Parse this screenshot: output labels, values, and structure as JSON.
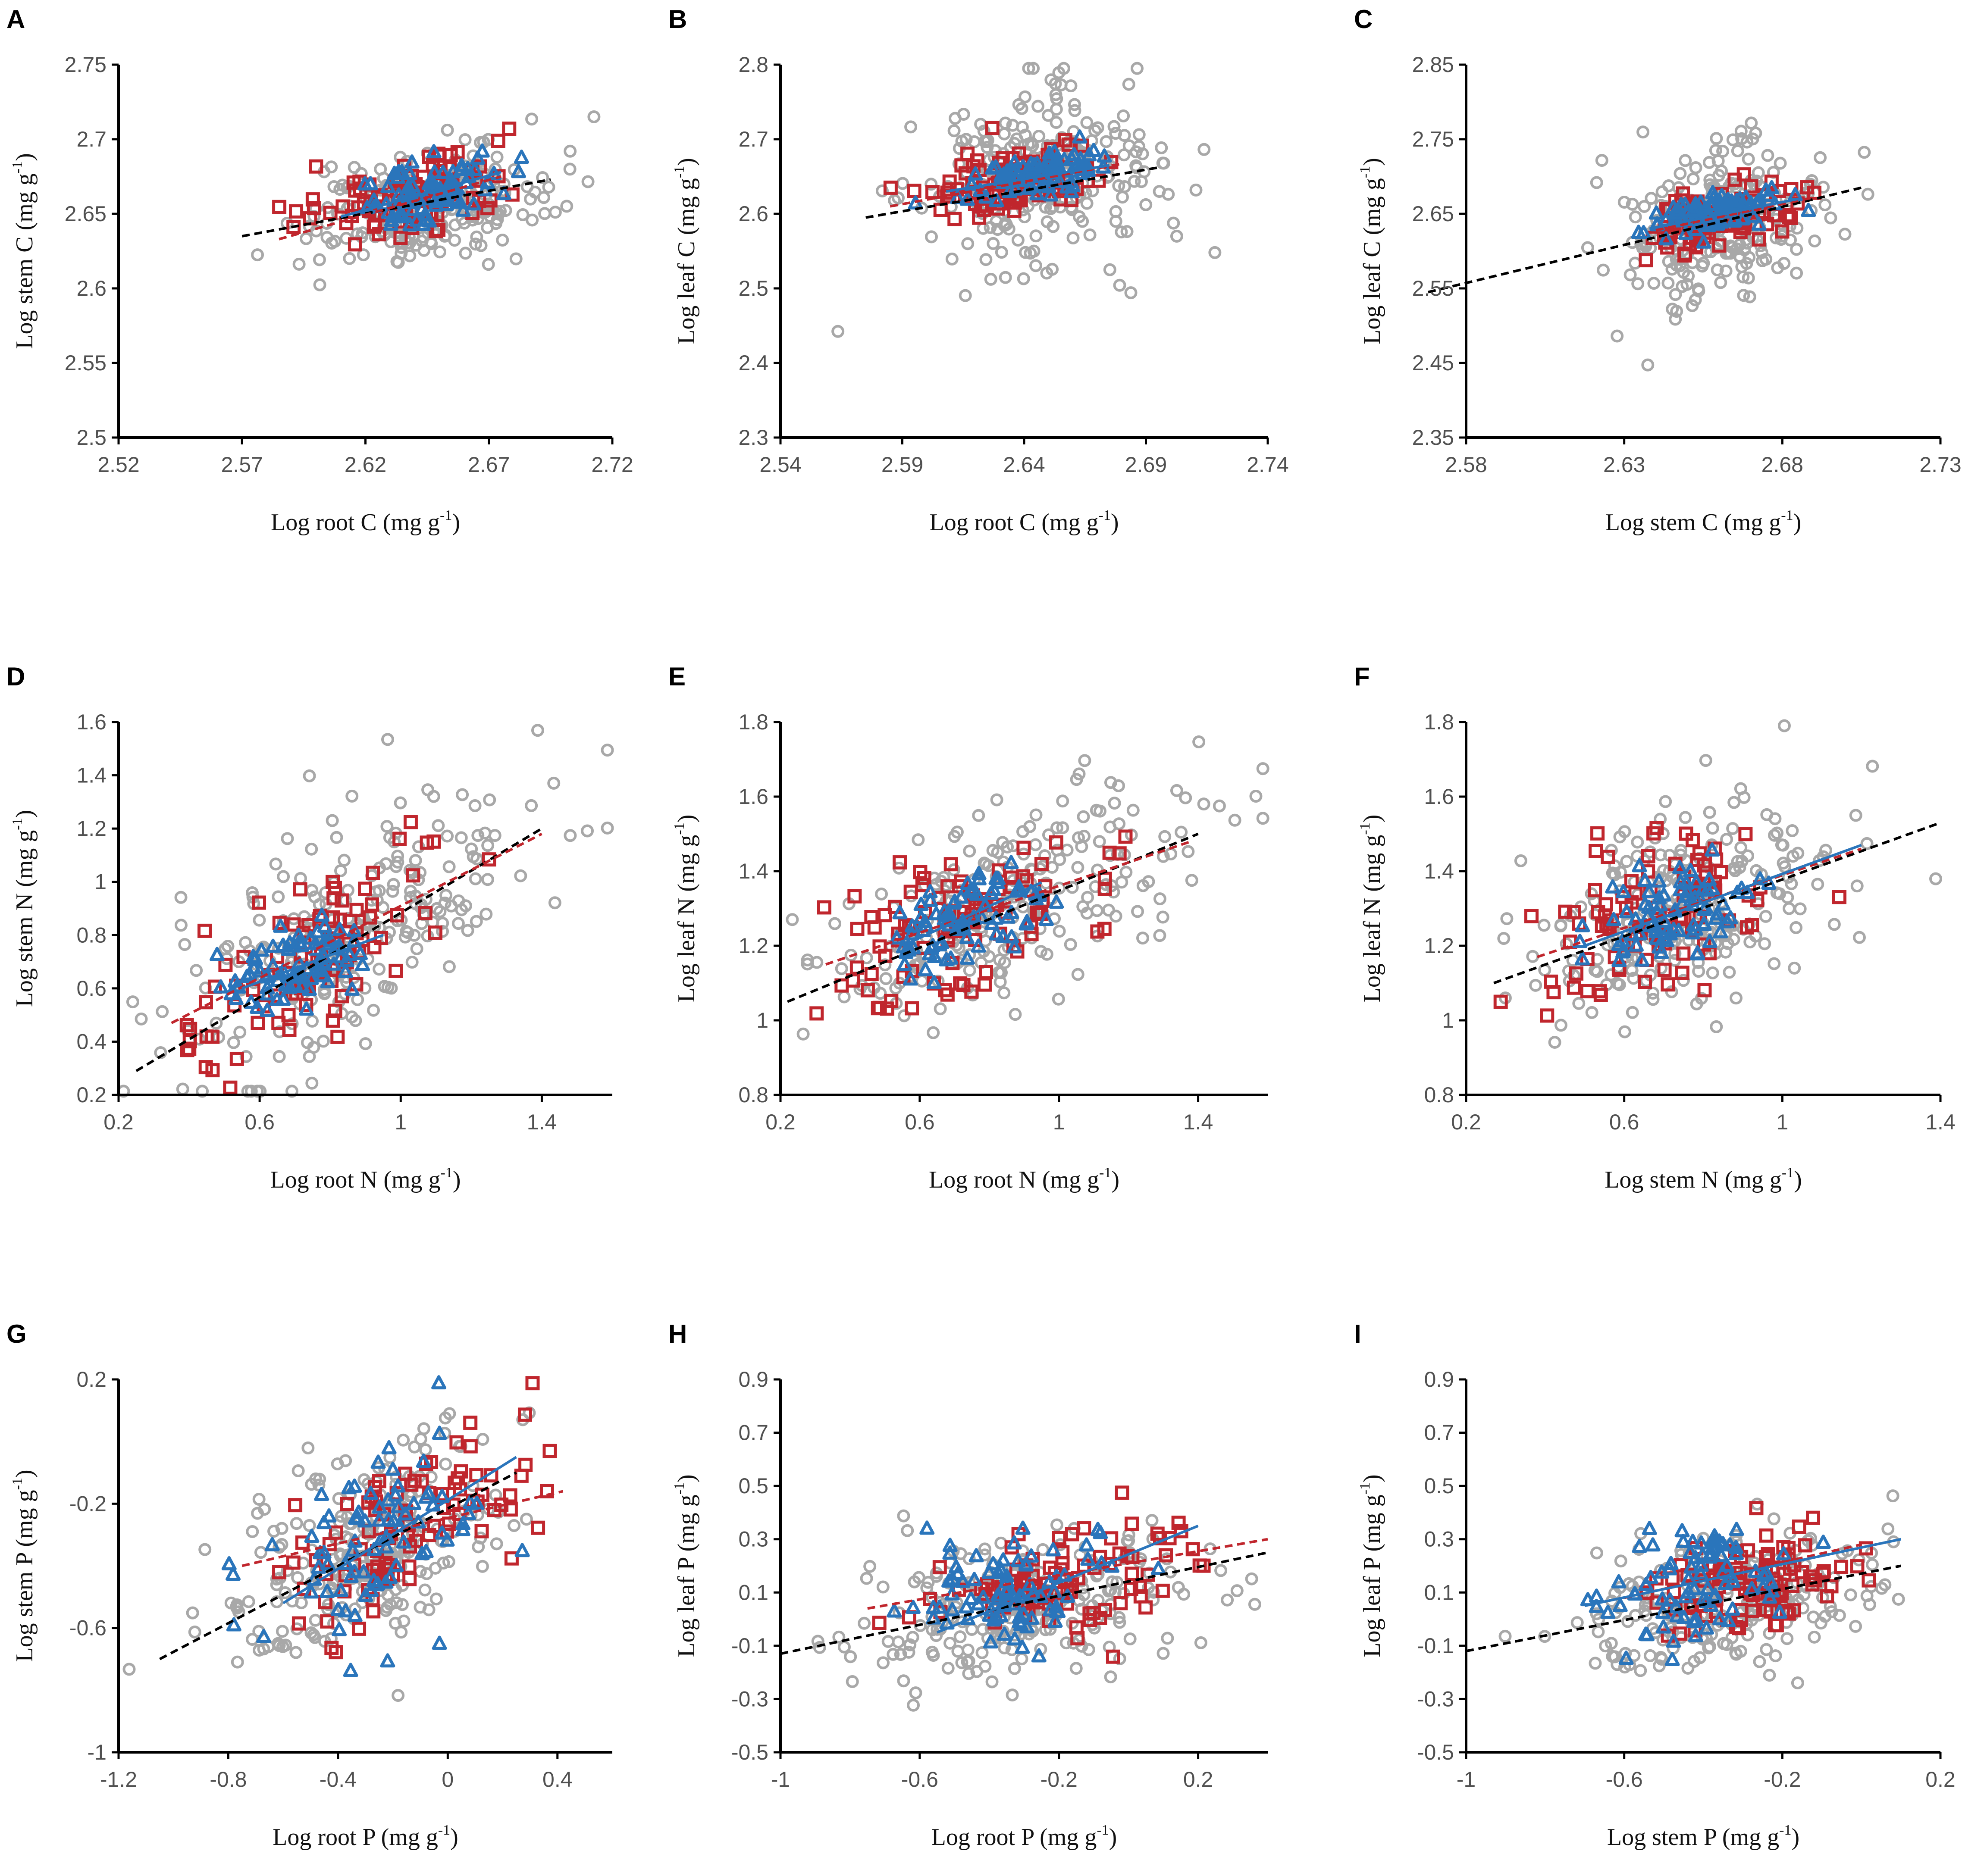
{
  "figure": {
    "colors": {
      "all": "#a8a8a8",
      "group_square": "#c0262d",
      "group_triangle": "#2a75bb",
      "fit_all": "#000000"
    },
    "markers": {
      "all": "circle-marker",
      "group_square": "square-marker",
      "group_triangle": "triangle-marker"
    }
  },
  "chart_data": [
    {
      "id": "A",
      "type": "scatter",
      "panel_label": "A",
      "xlabel": "Log root C (mg g",
      "ylabel": "Log stem C (mg g",
      "unit_sup": "-1",
      "unit_close": ")",
      "xlim": [
        2.52,
        2.72
      ],
      "ylim": [
        2.5,
        2.75
      ],
      "xticks": [
        "2.52",
        "2.57",
        "2.62",
        "2.67",
        "2.72"
      ],
      "yticks": [
        "2.5",
        "2.55",
        "2.6",
        "2.65",
        "2.7",
        "2.75"
      ],
      "center": {
        "gray": [
          2.645,
          2.655
        ],
        "red": [
          2.638,
          2.662
        ],
        "blue": [
          2.645,
          2.665
        ]
      },
      "spread": {
        "gray": [
          0.025,
          0.018
        ],
        "red": [
          0.02,
          0.015
        ],
        "blue": [
          0.015,
          0.01
        ]
      },
      "fits": [
        {
          "series": "all",
          "style": "dashed",
          "color": "#000000",
          "x": [
            2.57,
            2.695
          ],
          "y": [
            2.635,
            2.673
          ]
        },
        {
          "series": "group_square",
          "style": "dashed",
          "color": "#c0262d",
          "x": [
            2.585,
            2.675
          ],
          "y": [
            2.633,
            2.675
          ]
        },
        {
          "series": "group_triangle",
          "style": "solid",
          "color": "#2a75bb",
          "x": [
            2.61,
            2.675
          ],
          "y": [
            2.648,
            2.678
          ]
        }
      ]
    },
    {
      "id": "B",
      "type": "scatter",
      "panel_label": "B",
      "xlabel": "Log root C (mg g",
      "ylabel": "Log leaf C (mg g",
      "unit_sup": "-1",
      "unit_close": ")",
      "xlim": [
        2.54,
        2.74
      ],
      "ylim": [
        2.3,
        2.8
      ],
      "xticks": [
        "2.54",
        "2.59",
        "2.64",
        "2.69",
        "2.74"
      ],
      "yticks": [
        "2.3",
        "2.4",
        "2.5",
        "2.6",
        "2.7",
        "2.8"
      ],
      "center": {
        "gray": [
          2.645,
          2.64
        ],
        "red": [
          2.635,
          2.645
        ],
        "blue": [
          2.645,
          2.655
        ]
      },
      "spread": {
        "gray": [
          0.025,
          0.06
        ],
        "red": [
          0.018,
          0.02
        ],
        "blue": [
          0.015,
          0.015
        ]
      },
      "fits": [
        {
          "series": "all",
          "style": "dashed",
          "color": "#000000",
          "x": [
            2.575,
            2.695
          ],
          "y": [
            2.595,
            2.662
          ]
        },
        {
          "series": "group_square",
          "style": "dashed",
          "color": "#c0262d",
          "x": [
            2.585,
            2.68
          ],
          "y": [
            2.61,
            2.667
          ]
        },
        {
          "series": "group_triangle",
          "style": "solid",
          "color": "#2a75bb",
          "x": [
            2.608,
            2.675
          ],
          "y": [
            2.63,
            2.665
          ]
        }
      ]
    },
    {
      "id": "C",
      "type": "scatter",
      "panel_label": "C",
      "xlabel": "Log stem C (mg g",
      "ylabel": "Log leaf C (mg g",
      "unit_sup": "-1",
      "unit_close": ")",
      "xlim": [
        2.58,
        2.73
      ],
      "ylim": [
        2.35,
        2.85
      ],
      "xticks": [
        "2.58",
        "2.63",
        "2.68",
        "2.73"
      ],
      "yticks": [
        "2.35",
        "2.45",
        "2.55",
        "2.65",
        "2.75",
        "2.85"
      ],
      "center": {
        "gray": [
          2.66,
          2.64
        ],
        "red": [
          2.66,
          2.645
        ],
        "blue": [
          2.66,
          2.655
        ]
      },
      "spread": {
        "gray": [
          0.015,
          0.05
        ],
        "red": [
          0.012,
          0.02
        ],
        "blue": [
          0.01,
          0.012
        ]
      },
      "fits": [
        {
          "series": "all",
          "style": "dashed",
          "color": "#000000",
          "x": [
            2.568,
            2.705
          ],
          "y": [
            2.545,
            2.685
          ]
        },
        {
          "series": "group_square",
          "style": "dashed",
          "color": "#c0262d",
          "x": [
            2.64,
            2.69
          ],
          "y": [
            2.628,
            2.672
          ]
        },
        {
          "series": "group_triangle",
          "style": "solid",
          "color": "#2a75bb",
          "x": [
            2.638,
            2.685
          ],
          "y": [
            2.63,
            2.67
          ]
        }
      ]
    },
    {
      "id": "D",
      "type": "scatter",
      "panel_label": "D",
      "xlabel": "Log root N (mg g",
      "ylabel": "Log stem N (mg g",
      "unit_sup": "-1",
      "unit_close": ")",
      "xlim": [
        0.2,
        1.6
      ],
      "ylim": [
        0.2,
        1.6
      ],
      "xticks": [
        "0.2",
        "0.6",
        "1",
        "1.4"
      ],
      "yticks": [
        "0.2",
        "0.4",
        "0.6",
        "0.8",
        "1",
        "1.2",
        "1.4",
        "1.6"
      ],
      "center": {
        "gray": [
          0.85,
          0.82
        ],
        "red": [
          0.75,
          0.7
        ],
        "blue": [
          0.7,
          0.68
        ]
      },
      "spread": {
        "gray": [
          0.28,
          0.22
        ],
        "red": [
          0.2,
          0.15
        ],
        "blue": [
          0.1,
          0.08
        ]
      },
      "fits": [
        {
          "series": "all",
          "style": "dashed",
          "color": "#000000",
          "x": [
            0.25,
            1.4
          ],
          "y": [
            0.29,
            1.2
          ]
        },
        {
          "series": "group_square",
          "style": "dashed",
          "color": "#c0262d",
          "x": [
            0.35,
            1.4
          ],
          "y": [
            0.47,
            1.18
          ]
        },
        {
          "series": "group_triangle",
          "style": "solid",
          "color": "#2a75bb",
          "x": [
            0.55,
            0.95
          ],
          "y": [
            0.6,
            0.8
          ]
        }
      ]
    },
    {
      "id": "E",
      "type": "scatter",
      "panel_label": "E",
      "xlabel": "Log root N (mg g",
      "ylabel": "Log leaf N (mg g",
      "unit_sup": "-1",
      "unit_close": ")",
      "xlim": [
        0.2,
        1.6
      ],
      "ylim": [
        0.8,
        1.8
      ],
      "xticks": [
        "0.2",
        "0.6",
        "1",
        "1.4"
      ],
      "yticks": [
        "0.8",
        "1",
        "1.2",
        "1.4",
        "1.6",
        "1.8"
      ],
      "center": {
        "gray": [
          0.85,
          1.3
        ],
        "red": [
          0.75,
          1.28
        ],
        "blue": [
          0.72,
          1.27
        ]
      },
      "spread": {
        "gray": [
          0.26,
          0.13
        ],
        "red": [
          0.2,
          0.1
        ],
        "blue": [
          0.1,
          0.06
        ]
      },
      "fits": [
        {
          "series": "all",
          "style": "dashed",
          "color": "#000000",
          "x": [
            0.22,
            1.4
          ],
          "y": [
            1.05,
            1.5
          ]
        },
        {
          "series": "group_square",
          "style": "dashed",
          "color": "#c0262d",
          "x": [
            0.33,
            1.38
          ],
          "y": [
            1.15,
            1.48
          ]
        },
        {
          "series": "group_triangle",
          "style": "solid",
          "color": "#2a75bb",
          "x": [
            0.55,
            0.95
          ],
          "y": [
            1.2,
            1.37
          ]
        }
      ]
    },
    {
      "id": "F",
      "type": "scatter",
      "panel_label": "F",
      "xlabel": "Log stem N (mg g",
      "ylabel": "Log leaf N (mg g",
      "unit_sup": "-1",
      "unit_close": ")",
      "xlim": [
        0.2,
        1.4
      ],
      "ylim": [
        0.8,
        1.8
      ],
      "xticks": [
        "0.2",
        "0.6",
        "1",
        "1.4"
      ],
      "yticks": [
        "0.8",
        "1",
        "1.2",
        "1.4",
        "1.6",
        "1.8"
      ],
      "center": {
        "gray": [
          0.75,
          1.3
        ],
        "red": [
          0.68,
          1.28
        ],
        "blue": [
          0.7,
          1.28
        ]
      },
      "spread": {
        "gray": [
          0.2,
          0.13
        ],
        "red": [
          0.15,
          0.1
        ],
        "blue": [
          0.1,
          0.06
        ]
      },
      "fits": [
        {
          "series": "all",
          "style": "dashed",
          "color": "#000000",
          "x": [
            0.27,
            1.4
          ],
          "y": [
            1.1,
            1.53
          ]
        },
        {
          "series": "group_square",
          "style": "dashed",
          "color": "#c0262d",
          "x": [
            0.38,
            1.2
          ],
          "y": [
            1.17,
            1.46
          ]
        },
        {
          "series": "group_triangle",
          "style": "solid",
          "color": "#2a75bb",
          "x": [
            0.5,
            1.2
          ],
          "y": [
            1.2,
            1.47
          ]
        }
      ]
    },
    {
      "id": "G",
      "type": "scatter",
      "panel_label": "G",
      "xlabel": "Log root P (mg g",
      "ylabel": "Log stem P (mg g",
      "unit_sup": "-1",
      "unit_close": ")",
      "xlim": [
        -1.2,
        0.6
      ],
      "ylim": [
        -1,
        0.2
      ],
      "xticks": [
        "-1.2",
        "-0.8",
        "-0.4",
        "0",
        "0.4"
      ],
      "yticks": [
        "-1",
        "-0.6",
        "-0.2",
        "0.2"
      ],
      "center": {
        "gray": [
          -0.3,
          -0.35
        ],
        "red": [
          -0.15,
          -0.28
        ],
        "blue": [
          -0.3,
          -0.35
        ]
      },
      "spread": {
        "gray": [
          0.25,
          0.17
        ],
        "red": [
          0.22,
          0.13
        ],
        "blue": [
          0.18,
          0.13
        ]
      },
      "fits": [
        {
          "series": "all",
          "style": "dashed",
          "color": "#000000",
          "x": [
            -1.05,
            0.25
          ],
          "y": [
            -0.7,
            -0.1
          ]
        },
        {
          "series": "group_square",
          "style": "dashed",
          "color": "#c0262d",
          "x": [
            -0.75,
            0.42
          ],
          "y": [
            -0.4,
            -0.16
          ]
        },
        {
          "series": "group_triangle",
          "style": "solid",
          "color": "#2a75bb",
          "x": [
            -0.6,
            0.25
          ],
          "y": [
            -0.52,
            -0.05
          ]
        }
      ]
    },
    {
      "id": "H",
      "type": "scatter",
      "panel_label": "H",
      "xlabel": "Log root P (mg g",
      "ylabel": "Log leaf P (mg g",
      "unit_sup": "-1",
      "unit_close": ")",
      "xlim": [
        -1,
        0.4
      ],
      "ylim": [
        -0.5,
        0.9
      ],
      "xticks": [
        "-1",
        "-0.6",
        "-0.2",
        "0.2"
      ],
      "yticks": [
        "-0.5",
        "-0.3",
        "-0.1",
        "0.1",
        "0.3",
        "0.5",
        "0.7",
        "0.9"
      ],
      "center": {
        "gray": [
          -0.3,
          0.05
        ],
        "red": [
          -0.15,
          0.15
        ],
        "blue": [
          -0.35,
          0.1
        ]
      },
      "spread": {
        "gray": [
          0.22,
          0.13
        ],
        "red": [
          0.18,
          0.1
        ],
        "blue": [
          0.15,
          0.1
        ]
      },
      "fits": [
        {
          "series": "all",
          "style": "dashed",
          "color": "#000000",
          "x": [
            -1,
            0.4
          ],
          "y": [
            -0.13,
            0.25
          ]
        },
        {
          "series": "group_square",
          "style": "dashed",
          "color": "#c0262d",
          "x": [
            -0.75,
            0.4
          ],
          "y": [
            0.04,
            0.3
          ]
        },
        {
          "series": "group_triangle",
          "style": "solid",
          "color": "#2a75bb",
          "x": [
            -0.55,
            0.2
          ],
          "y": [
            -0.05,
            0.35
          ]
        }
      ]
    },
    {
      "id": "I",
      "type": "scatter",
      "panel_label": "I",
      "xlabel": "Log stem P (mg g",
      "ylabel": "Log leaf P (mg g",
      "unit_sup": "-1",
      "unit_close": ")",
      "xlim": [
        -1,
        0.2
      ],
      "ylim": [
        -0.5,
        0.9
      ],
      "xticks": [
        "-1",
        "-0.6",
        "-0.2",
        "0.2"
      ],
      "yticks": [
        "-0.5",
        "-0.3",
        "-0.1",
        "0.1",
        "0.3",
        "0.5",
        "0.7",
        "0.9"
      ],
      "center": {
        "gray": [
          -0.35,
          0.05
        ],
        "red": [
          -0.25,
          0.15
        ],
        "blue": [
          -0.4,
          0.12
        ]
      },
      "spread": {
        "gray": [
          0.18,
          0.13
        ],
        "red": [
          0.12,
          0.1
        ],
        "blue": [
          0.12,
          0.1
        ]
      },
      "fits": [
        {
          "series": "all",
          "style": "dashed",
          "color": "#000000",
          "x": [
            -1,
            0.1
          ],
          "y": [
            -0.12,
            0.2
          ]
        },
        {
          "series": "group_square",
          "style": "dashed",
          "color": "#c0262d",
          "x": [
            -0.6,
            0.0
          ],
          "y": [
            0.08,
            0.28
          ]
        },
        {
          "series": "group_triangle",
          "style": "solid",
          "color": "#2a75bb",
          "x": [
            -0.7,
            0.1
          ],
          "y": [
            0.05,
            0.3
          ]
        }
      ]
    }
  ]
}
